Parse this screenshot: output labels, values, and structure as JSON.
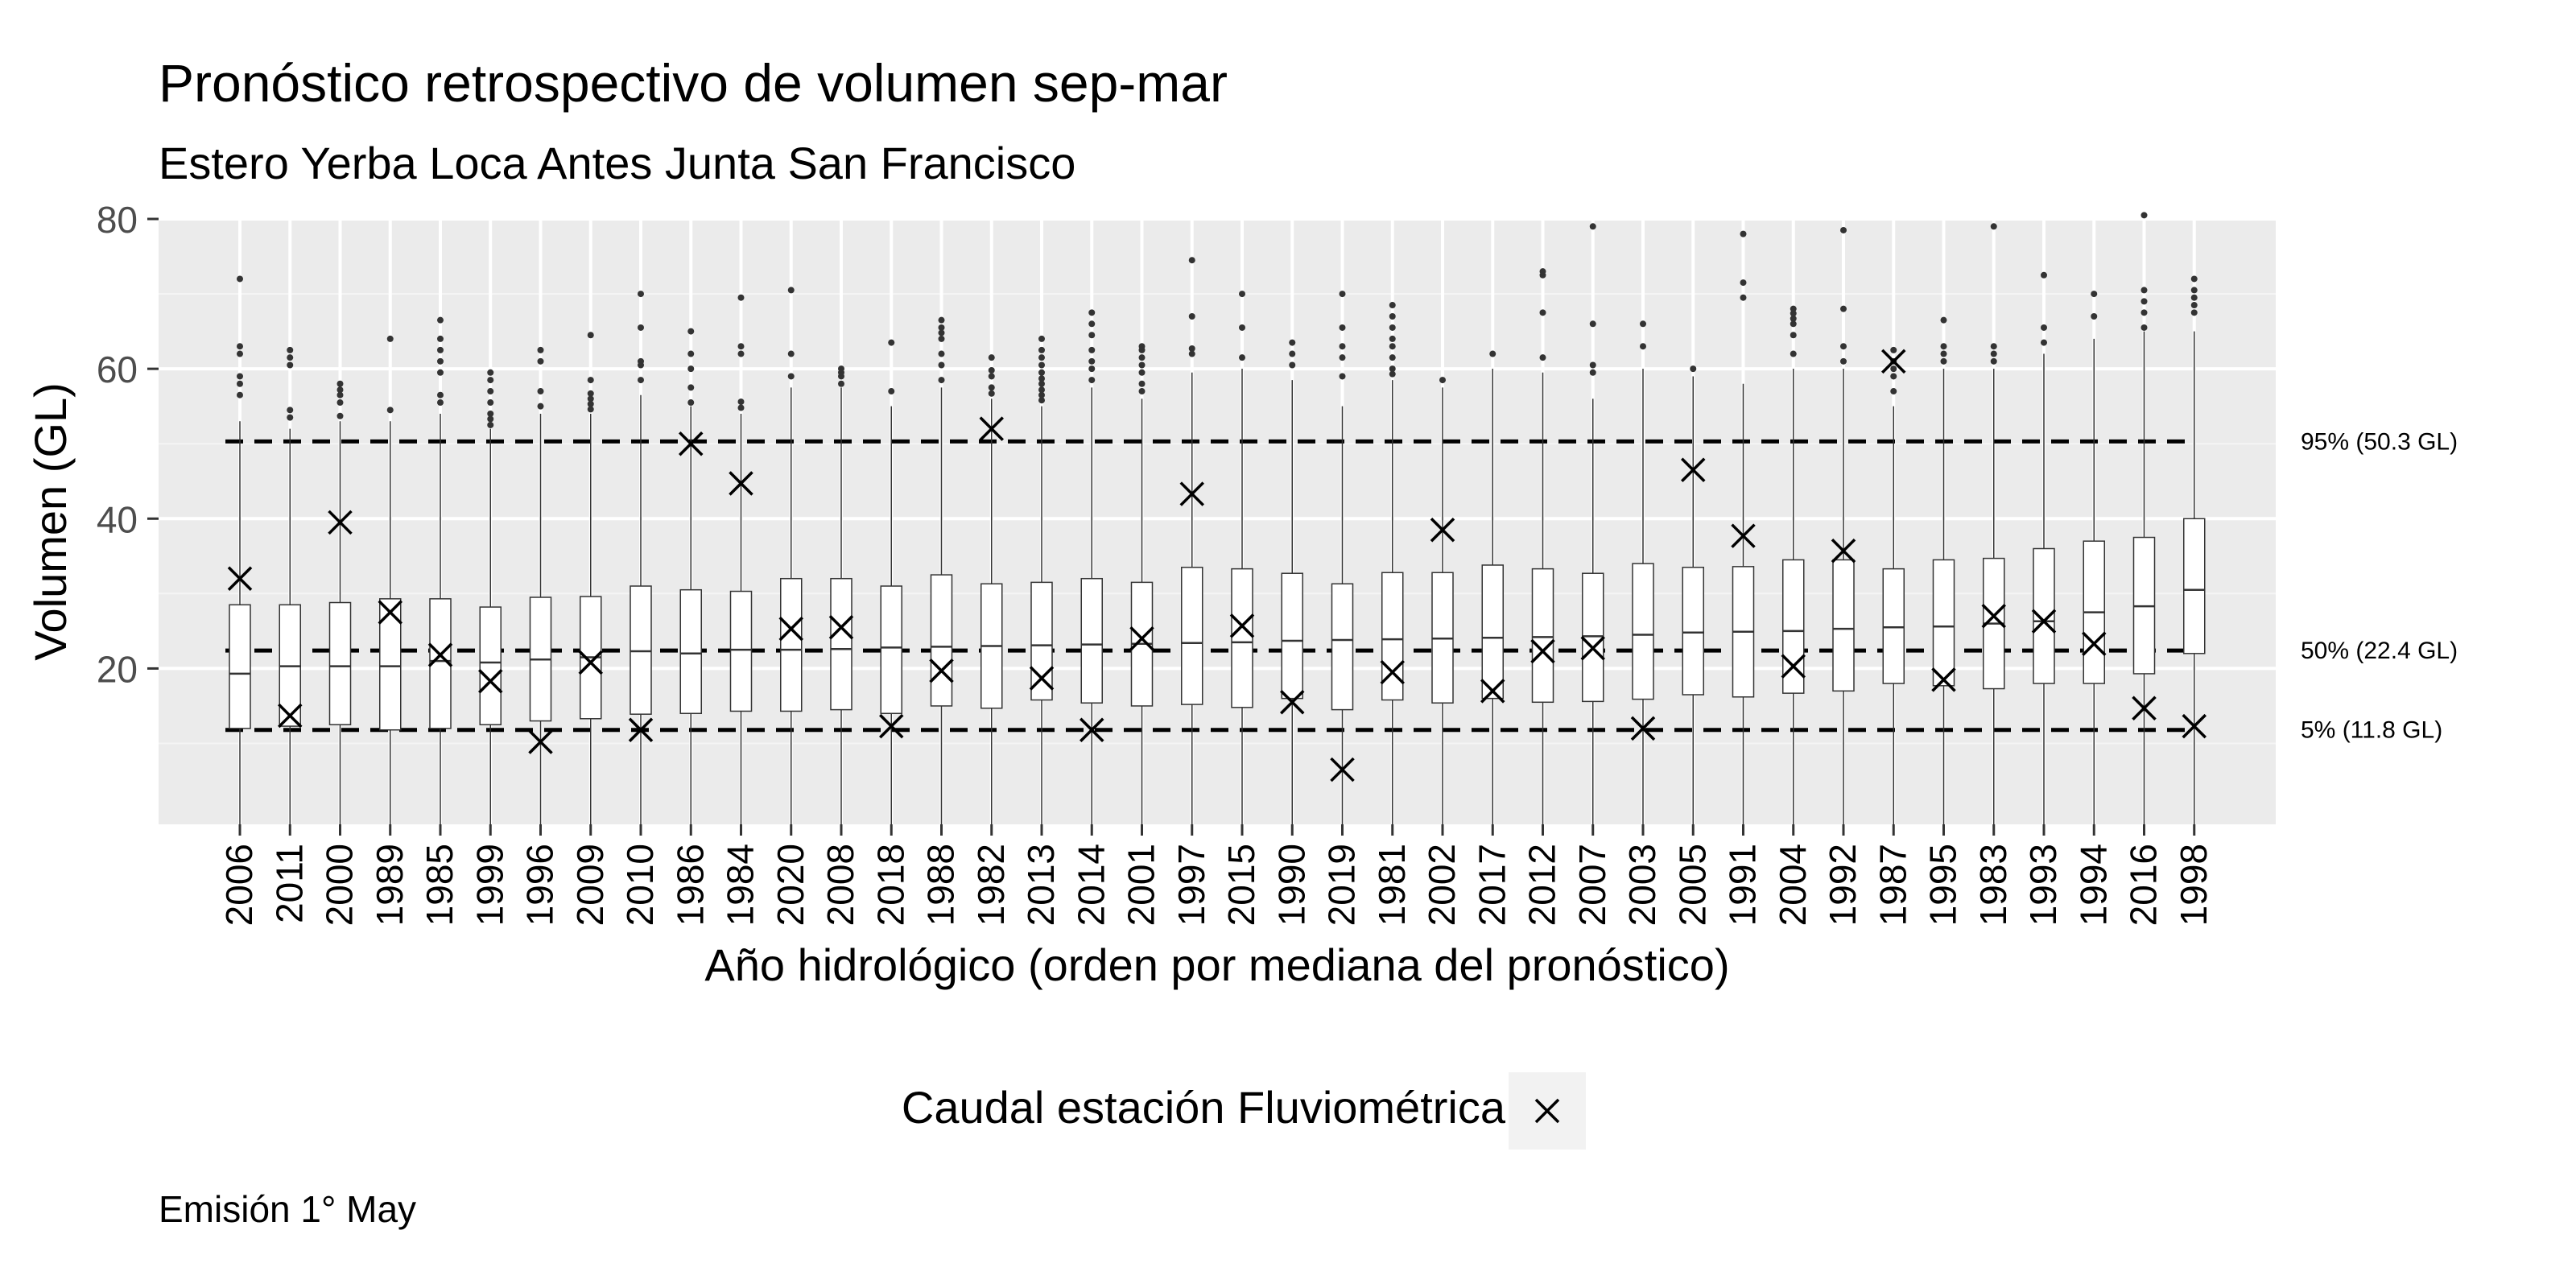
{
  "chart_data": {
    "type": "box",
    "title": "Pronóstico retrospectivo de volumen sep-mar",
    "subtitle": "Estero Yerba Loca Antes Junta San Francisco",
    "xlabel": "Año hidrológico (orden por mediana del pronóstico)",
    "ylabel": "Volumen (GL)",
    "ylim": [
      -0.8,
      80
    ],
    "yticks": [
      20,
      40,
      60,
      80
    ],
    "grid": true,
    "legend": {
      "title": "Caudal estación Fluviométrica",
      "position": "bottom",
      "symbol": "x"
    },
    "caption": "Emisión 1° May",
    "reference_lines": [
      {
        "label": "95% (50.3 GL)",
        "value": 50.3
      },
      {
        "label": "50% (22.4 GL)",
        "value": 22.4
      },
      {
        "label": "5% (11.8 GL)",
        "value": 11.8
      }
    ],
    "categories": [
      "2006",
      "2011",
      "2000",
      "1989",
      "1985",
      "1999",
      "1996",
      "2009",
      "2010",
      "1986",
      "1984",
      "2020",
      "2008",
      "2018",
      "1988",
      "1982",
      "2013",
      "2014",
      "2001",
      "1997",
      "2015",
      "1990",
      "2019",
      "1981",
      "2002",
      "2017",
      "2012",
      "2007",
      "2003",
      "2005",
      "1991",
      "2004",
      "1992",
      "1987",
      "1995",
      "1983",
      "1993",
      "1994",
      "2016",
      "1998"
    ],
    "boxes": [
      {
        "q1": 12.0,
        "median": 19.3,
        "q3": 28.5,
        "upper": 53.0,
        "outliers": [
          56.5,
          58.0,
          59.0,
          62.0,
          63.0,
          72.0
        ]
      },
      {
        "q1": 12.3,
        "median": 20.3,
        "q3": 28.5,
        "upper": 52.0,
        "outliers": [
          53.5,
          54.5,
          60.5,
          61.5,
          62.5
        ]
      },
      {
        "q1": 12.5,
        "median": 20.3,
        "q3": 28.8,
        "upper": 53.0,
        "outliers": [
          53.7,
          55.5,
          56.5,
          57.2,
          58.0
        ]
      },
      {
        "q1": 11.8,
        "median": 20.3,
        "q3": 29.3,
        "upper": 53.0,
        "outliers": [
          54.5,
          64.0
        ]
      },
      {
        "q1": 12.0,
        "median": 21.0,
        "q3": 29.3,
        "upper": 54.0,
        "outliers": [
          55.5,
          56.5,
          59.5,
          61.0,
          62.5,
          64.0,
          66.5
        ]
      },
      {
        "q1": 12.5,
        "median": 20.8,
        "q3": 28.2,
        "upper": 52.0,
        "outliers": [
          52.5,
          53.3,
          54.0,
          55.5,
          57.0,
          58.5,
          59.5
        ]
      },
      {
        "q1": 13.0,
        "median": 21.2,
        "q3": 29.5,
        "upper": 54.0,
        "outliers": [
          55.0,
          57.0,
          61.0,
          62.5
        ]
      },
      {
        "q1": 13.3,
        "median": 21.5,
        "q3": 29.6,
        "upper": 54.0,
        "outliers": [
          54.6,
          55.3,
          56.0,
          56.7,
          58.5,
          64.5
        ]
      },
      {
        "q1": 13.9,
        "median": 22.3,
        "q3": 31.0,
        "upper": 56.5,
        "outliers": [
          58.5,
          60.5,
          61.0,
          65.5,
          70.0
        ]
      },
      {
        "q1": 14.0,
        "median": 22.0,
        "q3": 30.5,
        "upper": 55.0,
        "outliers": [
          55.5,
          57.5,
          60.0,
          62.0,
          65.0
        ]
      },
      {
        "q1": 14.3,
        "median": 22.5,
        "q3": 30.3,
        "upper": 54.0,
        "outliers": [
          54.8,
          55.6,
          62.0,
          63.0,
          69.5
        ]
      },
      {
        "q1": 14.3,
        "median": 22.5,
        "q3": 32.0,
        "upper": 57.5,
        "outliers": [
          59.0,
          62.0,
          70.5
        ]
      },
      {
        "q1": 14.5,
        "median": 22.6,
        "q3": 32.0,
        "upper": 57.5,
        "outliers": [
          58.0,
          59.0,
          59.5,
          60.0
        ]
      },
      {
        "q1": 14.0,
        "median": 22.8,
        "q3": 31.0,
        "upper": 55.0,
        "outliers": [
          57.0,
          63.5
        ]
      },
      {
        "q1": 15.0,
        "median": 22.9,
        "q3": 32.5,
        "upper": 57.5,
        "outliers": [
          58.5,
          60.5,
          62.0,
          64.0,
          64.8,
          65.5,
          66.5
        ]
      },
      {
        "q1": 14.7,
        "median": 23.0,
        "q3": 31.3,
        "upper": 56.0,
        "outliers": [
          56.7,
          57.5,
          59.0,
          59.8,
          61.5
        ]
      },
      {
        "q1": 15.8,
        "median": 23.1,
        "q3": 31.5,
        "upper": 55.0,
        "outliers": [
          55.8,
          56.5,
          57.2,
          58.0,
          58.7,
          59.5,
          60.5,
          61.5,
          62.5,
          64.0
        ]
      },
      {
        "q1": 15.4,
        "median": 23.2,
        "q3": 32.0,
        "upper": 57.5,
        "outliers": [
          58.5,
          60.0,
          61.0,
          62.5,
          64.5,
          66.0,
          67.5
        ]
      },
      {
        "q1": 15.0,
        "median": 23.3,
        "q3": 31.5,
        "upper": 56.0,
        "outliers": [
          57.0,
          58.0,
          59.5,
          60.5,
          61.5,
          62.5,
          63.0
        ]
      },
      {
        "q1": 15.2,
        "median": 23.4,
        "q3": 33.5,
        "upper": 59.5,
        "outliers": [
          62.0,
          62.7,
          67.0,
          74.5
        ]
      },
      {
        "q1": 14.8,
        "median": 23.5,
        "q3": 33.3,
        "upper": 60.0,
        "outliers": [
          61.5,
          65.5,
          70.0
        ]
      },
      {
        "q1": 16.0,
        "median": 23.7,
        "q3": 32.7,
        "upper": 58.5,
        "outliers": [
          60.5,
          62.0,
          63.5
        ]
      },
      {
        "q1": 14.5,
        "median": 23.8,
        "q3": 31.3,
        "upper": 55.0,
        "outliers": [
          59.0,
          61.5,
          63.0,
          65.5,
          70.0
        ]
      },
      {
        "q1": 15.8,
        "median": 23.9,
        "q3": 32.8,
        "upper": 58.5,
        "outliers": [
          59.3,
          60.0,
          61.5,
          63.0,
          64.0,
          65.5,
          67.0,
          68.5
        ]
      },
      {
        "q1": 15.4,
        "median": 24.0,
        "q3": 32.8,
        "upper": 57.5,
        "outliers": [
          58.5
        ]
      },
      {
        "q1": 16.0,
        "median": 24.1,
        "q3": 33.8,
        "upper": 60.0,
        "outliers": [
          62.0
        ]
      },
      {
        "q1": 15.5,
        "median": 24.2,
        "q3": 33.3,
        "upper": 59.5,
        "outliers": [
          61.5,
          67.5,
          72.5,
          73.0
        ]
      },
      {
        "q1": 15.6,
        "median": 24.3,
        "q3": 32.7,
        "upper": 56.0,
        "outliers": [
          59.5,
          60.5,
          66.0,
          79.0
        ]
      },
      {
        "q1": 15.9,
        "median": 24.5,
        "q3": 34.0,
        "upper": 60.0,
        "outliers": [
          63.0,
          66.0
        ]
      },
      {
        "q1": 16.5,
        "median": 24.8,
        "q3": 33.5,
        "upper": 59.0,
        "outliers": [
          60.0
        ]
      },
      {
        "q1": 16.2,
        "median": 24.9,
        "q3": 33.6,
        "upper": 58.0,
        "outliers": [
          69.5,
          71.5,
          78.0
        ]
      },
      {
        "q1": 16.7,
        "median": 25.0,
        "q3": 34.5,
        "upper": 60.0,
        "outliers": [
          62.0,
          64.5,
          66.0,
          66.7,
          67.4,
          68.0
        ]
      },
      {
        "q1": 17.0,
        "median": 25.3,
        "q3": 34.5,
        "upper": 60.0,
        "outliers": [
          61.0,
          63.0,
          68.0,
          78.5
        ]
      },
      {
        "q1": 18.0,
        "median": 25.5,
        "q3": 33.3,
        "upper": 55.0,
        "outliers": [
          57.0,
          59.0,
          60.0,
          61.0,
          62.5
        ]
      },
      {
        "q1": 17.7,
        "median": 25.6,
        "q3": 34.5,
        "upper": 60.0,
        "outliers": [
          61.0,
          62.0,
          63.0,
          66.5
        ]
      },
      {
        "q1": 17.3,
        "median": 26.0,
        "q3": 34.7,
        "upper": 60.0,
        "outliers": [
          61.0,
          62.0,
          63.0,
          79.0
        ]
      },
      {
        "q1": 18.0,
        "median": 26.3,
        "q3": 36.0,
        "upper": 62.0,
        "outliers": [
          63.5,
          65.5,
          72.5
        ]
      },
      {
        "q1": 18.0,
        "median": 27.5,
        "q3": 37.0,
        "upper": 64.0,
        "outliers": [
          67.0,
          70.0
        ]
      },
      {
        "q1": 19.3,
        "median": 28.3,
        "q3": 37.5,
        "upper": 65.0,
        "outliers": [
          65.5,
          67.5,
          69.0,
          70.5,
          80.5
        ]
      },
      {
        "q1": 22.0,
        "median": 30.5,
        "q3": 40.0,
        "upper": 65.0,
        "outliers": [
          67.5,
          68.5,
          69.5,
          70.5,
          72.0
        ]
      }
    ],
    "observed": [
      32.0,
      13.7,
      39.5,
      27.5,
      21.8,
      18.3,
      10.2,
      20.8,
      11.8,
      50.0,
      44.7,
      25.3,
      25.5,
      12.3,
      19.7,
      52.0,
      18.7,
      11.8,
      24.0,
      43.3,
      25.7,
      15.5,
      6.5,
      19.5,
      38.5,
      17.0,
      22.3,
      22.7,
      12.0,
      46.5,
      37.7,
      20.3,
      35.7,
      61.0,
      18.5,
      27.0,
      26.3,
      23.3,
      14.7,
      12.3
    ]
  }
}
